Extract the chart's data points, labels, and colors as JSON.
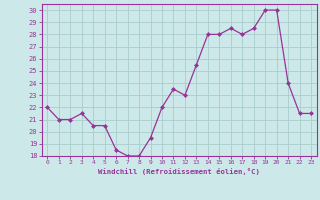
{
  "x": [
    0,
    1,
    2,
    3,
    4,
    5,
    6,
    7,
    8,
    9,
    10,
    11,
    12,
    13,
    14,
    15,
    16,
    17,
    18,
    19,
    20,
    21,
    22,
    23
  ],
  "y": [
    22,
    21,
    21,
    21.5,
    20.5,
    20.5,
    18.5,
    18,
    18,
    19.5,
    22,
    23.5,
    23,
    25.5,
    28,
    28,
    28.5,
    28,
    28.5,
    30,
    30,
    24,
    21.5,
    21.5
  ],
  "line_color": "#993399",
  "marker_color": "#993399",
  "bg_color": "#cce8e8",
  "grid_color": "#aacccc",
  "xlabel": "Windchill (Refroidissement éolien,°C)",
  "ylim": [
    18,
    30.5
  ],
  "xlim": [
    -0.5,
    23.5
  ],
  "yticks": [
    18,
    19,
    20,
    21,
    22,
    23,
    24,
    25,
    26,
    27,
    28,
    29,
    30
  ],
  "xticks": [
    0,
    1,
    2,
    3,
    4,
    5,
    6,
    7,
    8,
    9,
    10,
    11,
    12,
    13,
    14,
    15,
    16,
    17,
    18,
    19,
    20,
    21,
    22,
    23
  ],
  "color": "#993399"
}
